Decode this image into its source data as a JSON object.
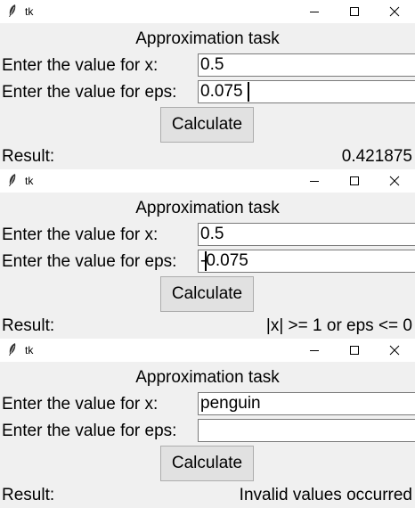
{
  "windows": [
    {
      "title": "tk",
      "heading": "Approximation task",
      "x_label": "Enter the value for x:",
      "eps_label": "Enter the value for eps:",
      "x_value": "0.5",
      "eps_value": "0.075",
      "button_label": "Calculate",
      "result_label": "Result:",
      "result_value": "0.421875",
      "focused_field": "eps"
    },
    {
      "title": "tk",
      "heading": "Approximation task",
      "x_label": "Enter the value for x:",
      "eps_label": "Enter the value for eps:",
      "x_value": "0.5",
      "eps_value": "-0.075",
      "button_label": "Calculate",
      "result_label": "Result:",
      "result_value": "|x| >= 1 or eps <= 0",
      "focused_field": "eps"
    },
    {
      "title": "tk",
      "heading": "Approximation task",
      "x_label": "Enter the value for x:",
      "eps_label": "Enter the value for eps:",
      "x_value": "penguin",
      "eps_value": "",
      "button_label": "Calculate",
      "result_label": "Result:",
      "result_value": "Invalid values occurred",
      "focused_field": ""
    }
  ],
  "icons": {
    "app": "feather-icon",
    "minimize": "minimize-icon",
    "maximize": "maximize-icon",
    "close": "close-icon"
  }
}
